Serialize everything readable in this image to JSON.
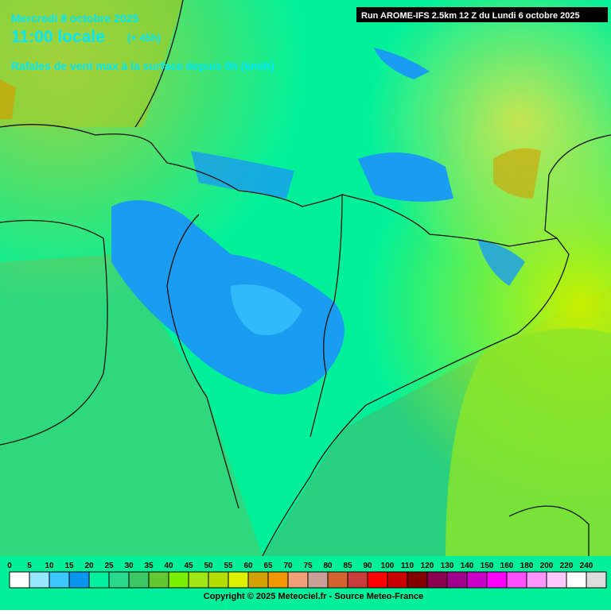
{
  "header": {
    "date": "Mercredi 8 octobre 2025",
    "time": "11:00 locale",
    "offset": "(+ 45h)",
    "title": "Rafales de vent max à la surface depuis 0h (km/h)",
    "run": "Run AROME-IFS 2.5km 12 Z du Lundi 6 octobre 2025"
  },
  "legend": {
    "labels": [
      0,
      5,
      10,
      15,
      20,
      25,
      30,
      35,
      40,
      45,
      50,
      55,
      60,
      65,
      70,
      75,
      80,
      85,
      90,
      100,
      110,
      120,
      130,
      140,
      150,
      160,
      180,
      200,
      220,
      240
    ],
    "colors": [
      "#ffffff",
      "#96e6ff",
      "#3cc8ff",
      "#0a96f0",
      "#00f0a0",
      "#28d88c",
      "#3cc864",
      "#64c832",
      "#78f000",
      "#a0e614",
      "#b4dc00",
      "#dcf000",
      "#d2a000",
      "#f09600",
      "#f0a078",
      "#c8a096",
      "#d26432",
      "#c83c3c",
      "#ff0000",
      "#c80000",
      "#820000",
      "#8c0050",
      "#a0008c",
      "#c800c8",
      "#ff00ff",
      "#ff50ff",
      "#ff96ff",
      "#ffc8ff",
      "#ffffff",
      "#dcdcdc"
    ]
  },
  "footer": {
    "copyright": "Copyright © 2025 Meteociel.fr - Source Meteo-France"
  }
}
